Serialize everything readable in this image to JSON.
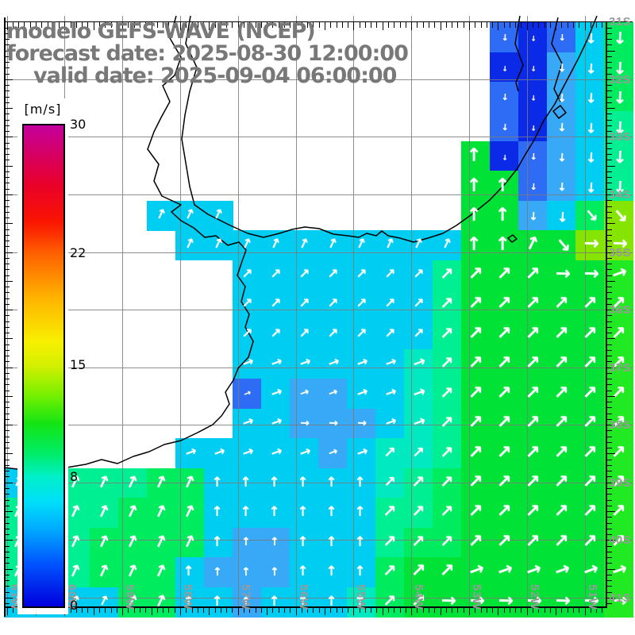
{
  "title": {
    "line1": "modelo GEFS-WAVE (NCEP)",
    "line2": "forecast date: 2025-08-30 12:00:00",
    "line3": "valid date: 2025-09-04 06:00:00"
  },
  "colorbar": {
    "unit": "[m/s]",
    "min": 0,
    "max": 30,
    "tick_values": [
      30,
      22,
      15,
      8,
      0
    ],
    "gradient_stops": [
      [
        "0%",
        "#c4009c"
      ],
      [
        "12%",
        "#e8002c"
      ],
      [
        "20%",
        "#fa1400"
      ],
      [
        "27%",
        "#ff6400"
      ],
      [
        "36%",
        "#ffb400"
      ],
      [
        "45%",
        "#f8f000"
      ],
      [
        "50%",
        "#d2f000"
      ],
      [
        "56%",
        "#78f000"
      ],
      [
        "62%",
        "#14e414"
      ],
      [
        "68%",
        "#00ec64"
      ],
      [
        "73%",
        "#00f0c8"
      ],
      [
        "78%",
        "#00e0f8"
      ],
      [
        "84%",
        "#00aaff"
      ],
      [
        "91%",
        "#0055ff"
      ],
      [
        "100%",
        "#0000dc"
      ]
    ]
  },
  "axis": {
    "lat_labels": [
      "31S",
      "32S",
      "33S",
      "34S",
      "35S",
      "36S",
      "37S",
      "38S",
      "39S",
      "40S",
      "41S"
    ],
    "lon_labels": [
      "61W",
      "60W",
      "59W",
      "58W",
      "57W",
      "56W",
      "55W",
      "54W",
      "53W",
      "52W",
      "51W"
    ]
  },
  "colors": {
    "title_text": "#787878",
    "grid_label": "#9a9a9a",
    "gridline": "rgba(122,122,122,0.85)",
    "coastline": "#000000",
    "arrow": "#ffffff",
    "land": "#ffffff"
  },
  "field": {
    "cols": 22,
    "rows": 20,
    "palette": {
      "W": "#ffffff",
      "N": "#0b2ae8",
      "B": "#2e6cf5",
      "b": "#38a9f7",
      "c": "#00cdf2",
      "C": "#55dcf5",
      "t": "#00e9c0",
      "s": "#00ef92",
      "g": "#00ec5f",
      "G": "#00e336",
      "E": "#22ea22",
      "Y": "#86e500"
    },
    "cells": [
      "WWWWWWWWWWWWWWWWWBNBcg",
      "WWWWWWWWWWWWWWWWWNNbcg",
      "WWWWWWWWWWWWWWWWWBNbcg",
      "WWWWWWWWWWWWWWWWWBNbcs",
      "WWWWWWWWWWWWWWWWGNBbcs",
      "WWWWWWWWWWWWWWWWGGBbcs",
      "WWWWWcccWWWWWWWWGGbcgY",
      "WWWWWWccccccccccGGGGYY",
      "WWWWWWWWcccccccsGGGGGE",
      "WWWWWWWWcccccccsGGGGGE",
      "WWWWWWWWcccccccsGGGGGE",
      "WWWWWWWWcccccctsGGGGGE",
      "WWWWWWWWBcbbcctsGGGGGE",
      "WWWWWWWWccbbbctsGGGGGE",
      "WWWWWWcccccbcttsGGGGGE",
      "ccsssggcccccctsgGGGGGE",
      "ssssgggccccccssgGGGGGE",
      "sssggggcbbcccsggGGGGGE",
      "sssgggcbbbcccgGGGGGGGE",
      "ccccggccbccctgGGGGGGGE"
    ],
    "dirs": [
      ".................sssss",
      ".................sssss",
      ".................sssss",
      ".................sssss",
      "................nsssss",
      "................nnssss",
      ".....aaa........nnsszz",
      "......aaaaaaaaaannazrr",
      "........eeeeeeeeeeerrf",
      "........eeeeeeeeeeeeee",
      "........eeeeeeeeeeeeee",
      "........fffffffeeeeeee",
      "........fffffffeeeeeee",
      "........ffrrrffeeeeeee",
      "......fffffffeeeeeeeee",
      "aaaaaaannnnnneeeeeeeee",
      "aaaaaaannnnnneeeeeeeee",
      "aaaaaaannnnnneeeeeeeee",
      "aaaaaannnnnnneeeffffff",
      "aaaaaannnnnnneerrrrrrr"
    ],
    "dir_angles": {
      "n": 0,
      "a": 25,
      "e": 45,
      "f": 70,
      "r": 92,
      "z": 140,
      "s": 183
    },
    "arrow_sizes": {
      "N": 9,
      "B": 11,
      "b": 14,
      "c": 17,
      "C": 17,
      "t": 19,
      "s": 21,
      "g": 21,
      "G": 23,
      "E": 23,
      "Y": 23
    }
  }
}
